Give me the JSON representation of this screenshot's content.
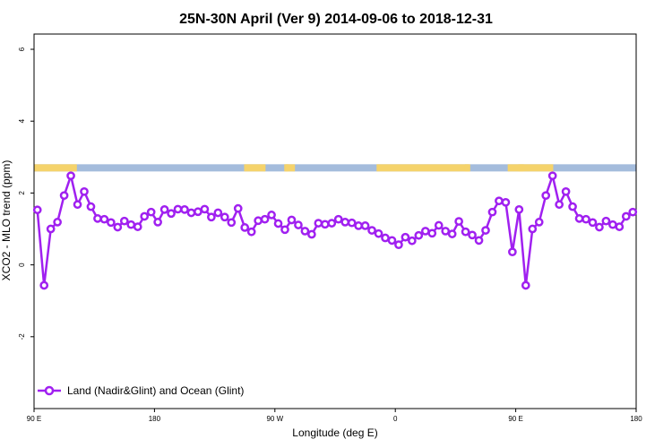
{
  "chart_data": {
    "type": "line",
    "title": "25N-30N April (Ver 9)   2014-09-06 to 2018-12-31",
    "xlabel": "Longitude (deg E)",
    "ylabel": "XCO2 - MLO trend (ppm)",
    "xlim": [
      90,
      540
    ],
    "ylim": [
      -4,
      6.2
    ],
    "x_ticks": [
      {
        "value": 90,
        "label": "90 E"
      },
      {
        "value": 180,
        "label": "180"
      },
      {
        "value": 270,
        "label": "90 W"
      },
      {
        "value": 360,
        "label": "0"
      },
      {
        "value": 450,
        "label": "90 E"
      },
      {
        "value": 540,
        "label": "180"
      }
    ],
    "y_ticks": [
      {
        "value": -2,
        "label": "-2"
      },
      {
        "value": 0,
        "label": "0"
      },
      {
        "value": 2,
        "label": "2"
      },
      {
        "value": 4,
        "label": "4"
      },
      {
        "value": 6,
        "label": "6"
      }
    ],
    "legend": {
      "position": "bottom-left",
      "label": "Land (Nadir&Glint) and Ocean (Glint)"
    },
    "colors": {
      "series": "#a020f0",
      "land": "#f5d36b",
      "ocean": "#a4bcdc"
    },
    "land_ocean_band": {
      "y_range": [
        2.6,
        2.8
      ],
      "land_segments": [
        [
          90,
          122
        ],
        [
          247,
          263
        ],
        [
          277,
          280
        ],
        [
          278,
          285
        ],
        [
          346,
          415
        ],
        [
          412,
          416
        ],
        [
          452,
          456
        ],
        [
          444,
          478
        ]
      ]
    },
    "series": [
      {
        "name": "Land (Nadir&Glint) and Ocean (Glint)",
        "x": [
          92.5,
          97.5,
          102.5,
          107.5,
          112.5,
          117.5,
          122.5,
          127.5,
          132.5,
          137.5,
          142.5,
          147.5,
          152.5,
          157.5,
          162.5,
          167.5,
          172.5,
          177.5,
          182.5,
          187.5,
          192.5,
          197.5,
          202.5,
          207.5,
          212.5,
          217.5,
          222.5,
          227.5,
          232.5,
          237.5,
          242.5,
          247.5,
          252.5,
          257.5,
          262.5,
          267.5,
          272.5,
          277.5,
          282.5,
          287.5,
          292.5,
          297.5,
          302.5,
          307.5,
          312.5,
          317.5,
          322.5,
          327.5,
          332.5,
          337.5,
          342.5,
          347.5,
          352.5,
          357.5,
          362.5,
          367.5,
          372.5,
          377.5,
          382.5,
          387.5,
          392.5,
          397.5,
          402.5,
          407.5,
          412.5,
          417.5,
          422.5,
          427.5,
          432.5,
          437.5,
          442.5,
          447.5,
          452.5,
          457.5,
          462.5,
          467.5,
          472.5,
          477.5,
          482.5,
          487.5,
          492.5,
          497.5,
          502.5,
          507.5,
          512.5,
          517.5,
          522.5,
          527.5,
          532.5,
          537.5
        ],
        "y": [
          1.53,
          -0.57,
          1.0,
          1.19,
          1.93,
          2.48,
          1.68,
          2.04,
          1.62,
          1.29,
          1.27,
          1.18,
          1.05,
          1.22,
          1.12,
          1.06,
          1.35,
          1.47,
          1.19,
          1.54,
          1.43,
          1.55,
          1.54,
          1.45,
          1.48,
          1.55,
          1.33,
          1.45,
          1.33,
          1.18,
          1.57,
          1.04,
          0.92,
          1.23,
          1.27,
          1.39,
          1.15,
          0.98,
          1.25,
          1.11,
          0.94,
          0.85,
          1.16,
          1.13,
          1.16,
          1.27,
          1.19,
          1.17,
          1.09,
          1.09,
          0.96,
          0.87,
          0.75,
          0.68,
          0.56,
          0.77,
          0.67,
          0.82,
          0.94,
          0.88,
          1.1,
          0.94,
          0.86,
          1.21,
          0.92,
          0.83,
          0.68,
          0.96,
          1.47,
          1.78,
          1.74,
          0.36,
          1.54,
          -0.57,
          1.0,
          1.19,
          1.93,
          2.48,
          1.68,
          2.04,
          1.62,
          1.29,
          1.27,
          1.18,
          1.05,
          1.22,
          1.12,
          1.06,
          1.35,
          1.47
        ]
      }
    ]
  }
}
